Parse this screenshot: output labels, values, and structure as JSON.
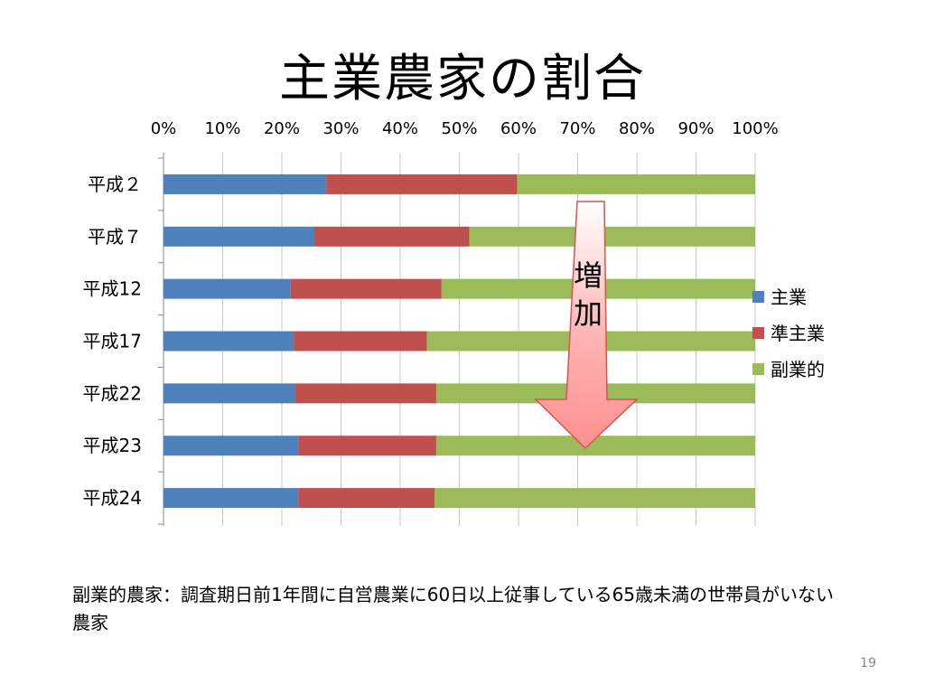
{
  "title": "主業農家の割合",
  "note": "副業的農家：調査期日前1年間に自営農業に60日以上従事している65歳未満の世帯員がいない農家",
  "page_number": "19",
  "arrow_label_1": "増",
  "arrow_label_2": "加",
  "chart_data": {
    "type": "bar",
    "orientation": "horizontal",
    "stacked": "percent",
    "categories": [
      "平成２",
      "平成７",
      "平成12",
      "平成17",
      "平成22",
      "平成23",
      "平成24"
    ],
    "series": [
      {
        "name": "主業",
        "color": "#4F81BD",
        "values": [
          27.5,
          25.5,
          21.5,
          22.0,
          22.3,
          22.8,
          22.8
        ]
      },
      {
        "name": "準主業",
        "color": "#C0504D",
        "values": [
          32.3,
          26.2,
          25.5,
          22.5,
          23.8,
          23.3,
          23.0
        ]
      },
      {
        "name": "副業的",
        "color": "#9BBB59",
        "values": [
          40.2,
          48.3,
          53.0,
          55.5,
          53.9,
          53.9,
          54.2
        ]
      }
    ],
    "x_ticks": [
      "0%",
      "10%",
      "20%",
      "30%",
      "40%",
      "50%",
      "60%",
      "70%",
      "80%",
      "90%",
      "100%"
    ],
    "xlim": [
      0,
      100
    ],
    "legend_position": "right",
    "grid": true
  }
}
